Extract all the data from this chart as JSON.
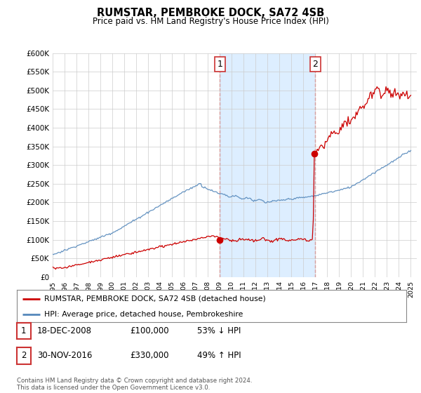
{
  "title": "RUMSTAR, PEMBROKE DOCK, SA72 4SB",
  "subtitle": "Price paid vs. HM Land Registry's House Price Index (HPI)",
  "red_line_color": "#cc0000",
  "blue_line_color": "#5588bb",
  "highlight_bg_color": "#ddeeff",
  "highlight_x1": 2009.0,
  "highlight_x2": 2017.0,
  "point1_x": 2008.97,
  "point1_y": 100000,
  "point2_x": 2016.92,
  "point2_y": 330000,
  "legend_red_label": "RUMSTAR, PEMBROKE DOCK, SA72 4SB (detached house)",
  "legend_blue_label": "HPI: Average price, detached house, Pembrokeshire",
  "table_rows": [
    {
      "num": "1",
      "date": "18-DEC-2008",
      "price": "£100,000",
      "change": "53% ↓ HPI"
    },
    {
      "num": "2",
      "date": "30-NOV-2016",
      "price": "£330,000",
      "change": "49% ↑ HPI"
    }
  ],
  "footnote": "Contains HM Land Registry data © Crown copyright and database right 2024.\nThis data is licensed under the Open Government Licence v3.0.",
  "background_color": "#ffffff",
  "grid_color": "#cccccc",
  "ylim": [
    0,
    600000
  ],
  "xlim_start": 1995.0,
  "xlim_end": 2025.5
}
